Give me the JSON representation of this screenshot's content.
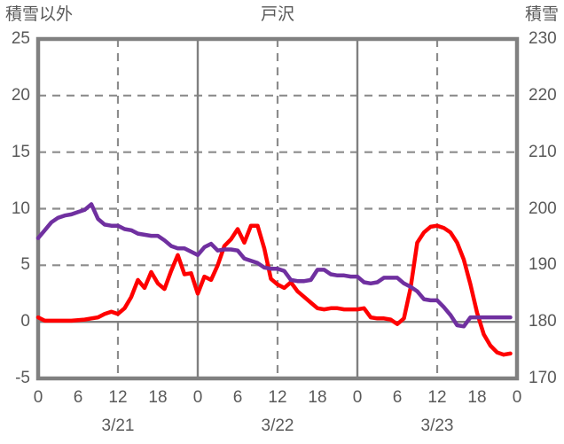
{
  "header": {
    "left_axis_title": "積雪以外",
    "chart_title": "戸沢",
    "right_axis_title": "積雪"
  },
  "colors": {
    "text": "#595959",
    "axis_border": "#808080",
    "grid_dashed": "#8c8c8c",
    "grid_solid": "#808080",
    "series_other": "#ff0000",
    "series_snow": "#7030a0"
  },
  "chart_data": {
    "type": "line",
    "title": "戸沢",
    "legend": "none",
    "left_axis": {
      "label": "積雪以外",
      "min": -5,
      "max": 25,
      "ticks": [
        25,
        20,
        15,
        10,
        5,
        0,
        -5
      ],
      "dashed_gridlines": [
        20,
        15,
        10,
        5
      ],
      "zero_line": 0
    },
    "right_axis": {
      "label": "積雪",
      "min": 170,
      "max": 230,
      "ticks": [
        230,
        220,
        210,
        200,
        190,
        180,
        170
      ]
    },
    "x_axis": {
      "unit": "hours",
      "total_hours": 72,
      "tick_interval_hours": 6,
      "tick_labels": [
        "0",
        "6",
        "12",
        "18",
        "0",
        "6",
        "12",
        "18",
        "0",
        "6",
        "12",
        "18",
        "0"
      ],
      "dashed_gridlines_hours": [
        12,
        36,
        60
      ],
      "solid_gridlines_hours": [
        24,
        48
      ],
      "date_labels": [
        {
          "label": "3/21",
          "center_hour": 12
        },
        {
          "label": "3/22",
          "center_hour": 36
        },
        {
          "label": "3/23",
          "center_hour": 60
        }
      ]
    },
    "series": [
      {
        "name": "積雪以外",
        "axis": "left",
        "color": "#ff0000",
        "start_hour": 0,
        "step_hours": 1,
        "values": [
          0.4,
          0.1,
          0.1,
          0.1,
          0.1,
          0.1,
          0.15,
          0.2,
          0.3,
          0.4,
          0.7,
          0.9,
          0.7,
          1.2,
          2.2,
          3.7,
          3.0,
          4.4,
          3.4,
          2.9,
          4.5,
          5.9,
          4.2,
          4.3,
          2.5,
          4.0,
          3.7,
          5.0,
          6.7,
          7.3,
          8.2,
          7.0,
          8.5,
          8.5,
          6.5,
          3.8,
          3.3,
          3.0,
          3.5,
          2.7,
          2.2,
          1.7,
          1.2,
          1.1,
          1.2,
          1.2,
          1.1,
          1.1,
          1.1,
          1.2,
          0.4,
          0.3,
          0.3,
          0.2,
          -0.2,
          0.3,
          3.0,
          7.0,
          7.9,
          8.4,
          8.5,
          8.3,
          7.9,
          7.0,
          5.5,
          3.3,
          0.8,
          -1.1,
          -2.1,
          -2.7,
          -2.9,
          -2.8
        ]
      },
      {
        "name": "積雪",
        "axis": "right",
        "color": "#7030a0",
        "start_hour": 0,
        "step_hours": 1,
        "values": [
          194.8,
          196.2,
          197.6,
          198.4,
          198.8,
          199.0,
          199.4,
          199.8,
          200.8,
          198.2,
          197.2,
          197.0,
          197.0,
          196.4,
          196.2,
          195.6,
          195.4,
          195.2,
          195.2,
          194.4,
          193.4,
          193.0,
          193.0,
          192.4,
          191.8,
          193.2,
          193.8,
          192.6,
          192.8,
          192.8,
          192.6,
          191.2,
          190.8,
          190.4,
          189.6,
          189.4,
          189.4,
          189.0,
          187.4,
          187.2,
          187.2,
          187.4,
          189.2,
          189.2,
          188.4,
          188.2,
          188.2,
          188.0,
          188.0,
          187.0,
          186.8,
          187.0,
          187.8,
          187.8,
          187.8,
          186.8,
          186.2,
          185.4,
          184.0,
          183.8,
          183.8,
          182.6,
          181.2,
          179.4,
          179.2,
          180.8,
          180.8,
          180.8,
          180.8,
          180.8,
          180.8,
          180.8
        ]
      }
    ]
  }
}
